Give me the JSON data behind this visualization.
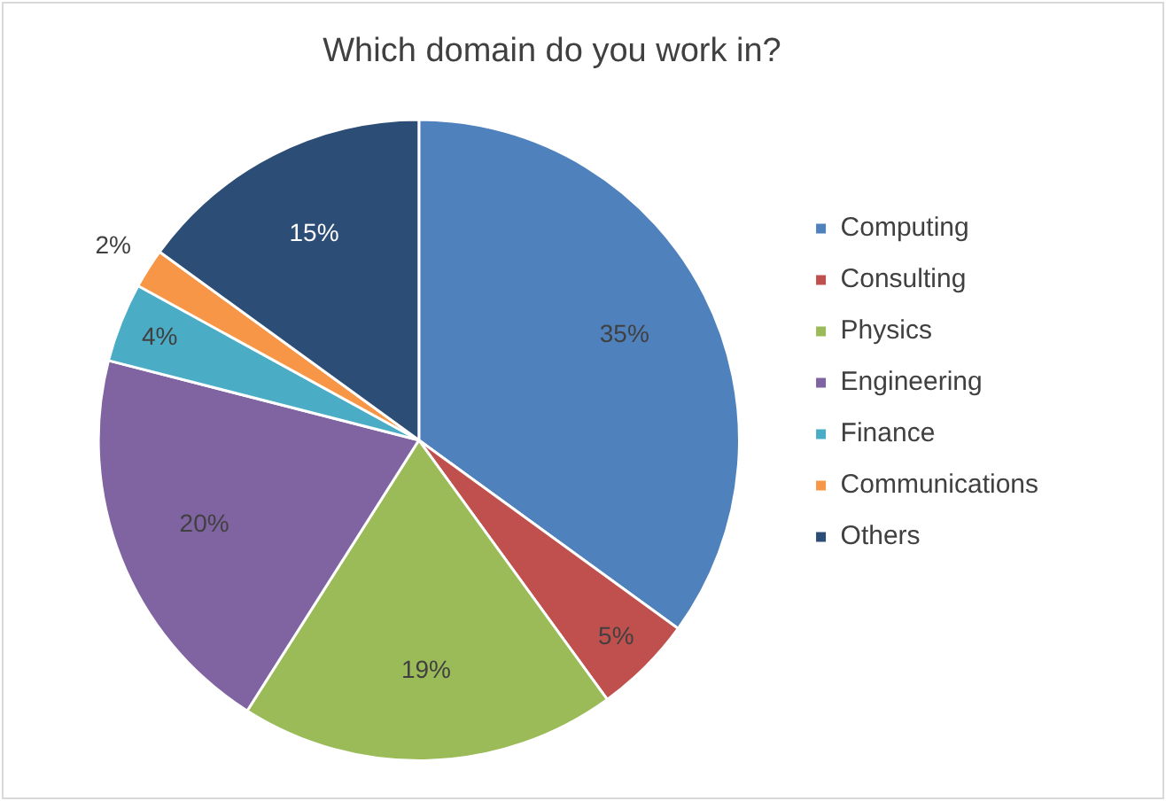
{
  "chart_data": {
    "type": "pie",
    "title": "Which domain do you work in?",
    "categories": [
      "Computing",
      "Consulting",
      "Physics",
      "Engineering",
      "Finance",
      "Communications",
      "Others"
    ],
    "values": [
      35,
      5,
      19,
      20,
      4,
      2,
      15
    ],
    "colors": [
      "#4f81bd",
      "#c0504d",
      "#9bbb59",
      "#8064a2",
      "#4bacc6",
      "#f79646",
      "#2c4d75"
    ],
    "value_labels": [
      "35%",
      "5%",
      "19%",
      "20%",
      "4%",
      "2%",
      "15%"
    ],
    "legend": "right"
  }
}
